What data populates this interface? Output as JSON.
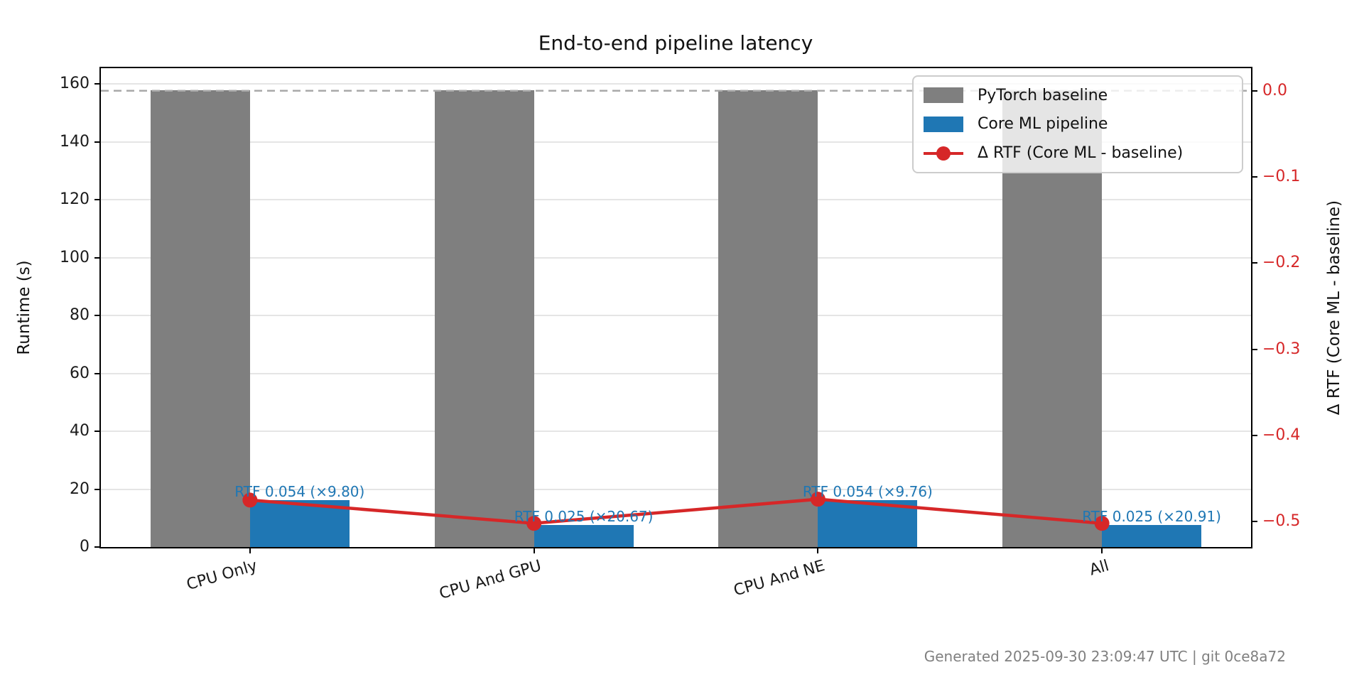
{
  "figure": {
    "title": "End-to-end pipeline latency",
    "footer": "Generated 2025-09-30 23:09:47 UTC | git 0ce8a72"
  },
  "chart_data": {
    "type": "bar",
    "title": "End-to-end pipeline latency",
    "categories": [
      "CPU Only",
      "CPU And GPU",
      "CPU And NE",
      "All"
    ],
    "left_axis": {
      "label": "Runtime (s)",
      "ticks": [
        0,
        20,
        40,
        60,
        80,
        100,
        120,
        140,
        160
      ],
      "lim": [
        0,
        165.5
      ]
    },
    "right_axis": {
      "label": "Δ RTF (Core ML - baseline)",
      "ticks": [
        0,
        -0.1,
        -0.2,
        -0.3,
        -0.4,
        -0.5
      ],
      "lim": [
        -0.5295,
        0.0262
      ],
      "tick_color": "#d62728"
    },
    "series": [
      {
        "name": "PyTorch baseline",
        "kind": "bar",
        "axis": "left",
        "color": "#7f7f7f",
        "values": [
          157.8,
          157.8,
          157.8,
          157.8
        ]
      },
      {
        "name": "Core ML pipeline",
        "kind": "bar",
        "axis": "left",
        "color": "#1f77b4",
        "values": [
          16.1,
          7.6,
          16.2,
          7.5
        ]
      },
      {
        "name": "Δ RTF (Core ML - baseline)",
        "kind": "line",
        "axis": "right",
        "color": "#d62728",
        "values": [
          -0.475,
          -0.502,
          -0.474,
          -0.502
        ]
      }
    ],
    "annotations": [
      "RTF 0.054 (×9.80)",
      "RTF 0.025 (×20.67)",
      "RTF 0.054 (×9.76)",
      "RTF 0.025 (×20.91)"
    ],
    "annotation_color": "#1f77b4",
    "baseline_reference_line": {
      "value_right_axis": 0.0,
      "style": "dashed",
      "color": "#a9a9a9"
    },
    "grid": "horizontal",
    "grid_color": "#e5e5e5",
    "legend": {
      "position": "upper right",
      "entries": [
        "PyTorch baseline",
        "Core ML pipeline",
        "Δ RTF (Core ML - baseline)"
      ]
    }
  }
}
